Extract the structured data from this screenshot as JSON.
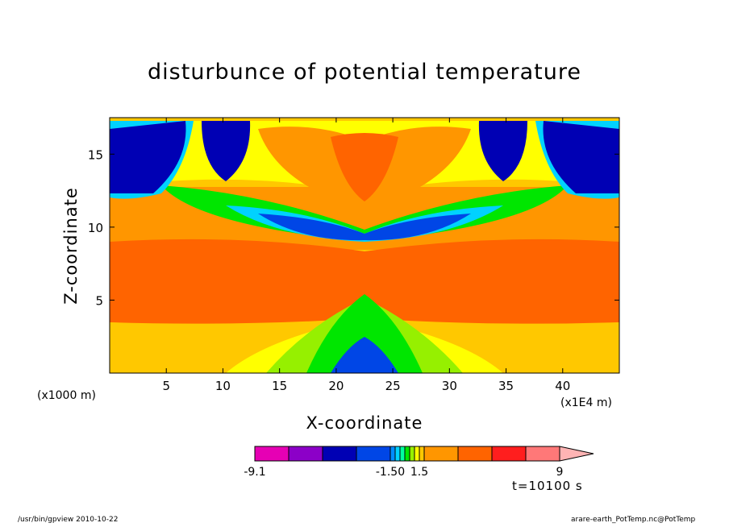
{
  "chart_data": {
    "type": "heatmap",
    "title": "disturbunce of potential temperature",
    "xlabel": "X-coordinate",
    "ylabel": "Z-coordinate",
    "x_unit": "(x1000 m)",
    "x_scale_note": "(x1E4 m)",
    "xlim": [
      0,
      45
    ],
    "ylim": [
      0,
      17.5
    ],
    "x_ticks": [
      5,
      10,
      15,
      20,
      25,
      30,
      35,
      40
    ],
    "y_ticks": [
      5,
      10,
      15
    ],
    "colorbar": {
      "colors": [
        "#e600b4",
        "#8c00c8",
        "#0000b4",
        "#0046e6",
        "#008cff",
        "#00d2ff",
        "#00ffa0",
        "#00e600",
        "#96f000",
        "#ffff00",
        "#ffc800",
        "#ff9600",
        "#ff6400",
        "#ff1e1e",
        "#ff7878",
        "#ffb4b4"
      ],
      "labels": [
        "-9.1",
        "-1.50",
        "1.5",
        "9"
      ]
    },
    "time_label": "t=10100 s"
  },
  "footer": {
    "left": "/usr/bin/gpview   2010-10-22",
    "right": "arare-earth_PotTemp.nc@PotTemp"
  }
}
